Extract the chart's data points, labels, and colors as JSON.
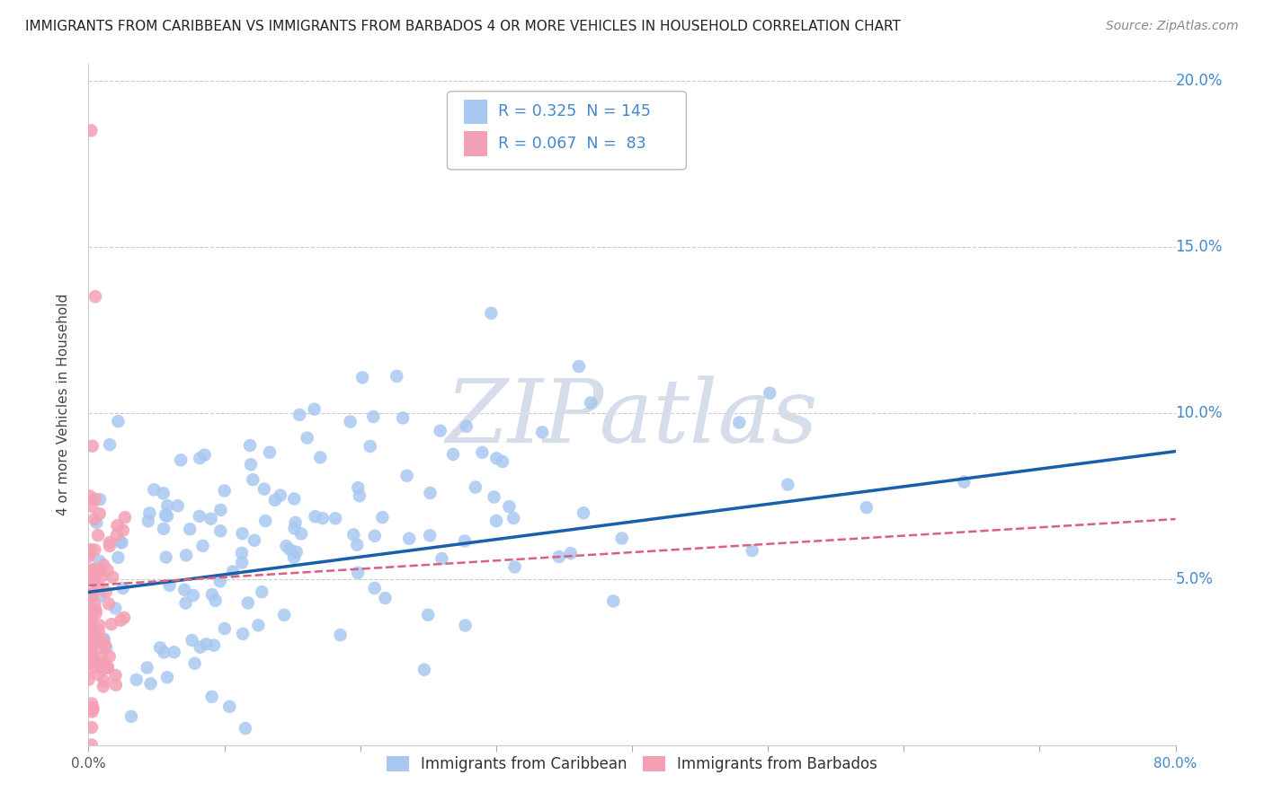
{
  "title": "IMMIGRANTS FROM CARIBBEAN VS IMMIGRANTS FROM BARBADOS 4 OR MORE VEHICLES IN HOUSEHOLD CORRELATION CHART",
  "source": "Source: ZipAtlas.com",
  "ylabel": "4 or more Vehicles in Household",
  "xlim": [
    0.0,
    0.8
  ],
  "ylim": [
    0.0,
    0.205
  ],
  "xticks": [
    0.0,
    0.1,
    0.2,
    0.3,
    0.4,
    0.5,
    0.6,
    0.7,
    0.8
  ],
  "xticklabels_outer": [
    "0.0%",
    "80.0%"
  ],
  "yticks": [
    0.0,
    0.05,
    0.1,
    0.15,
    0.2
  ],
  "yticklabels_right": [
    "",
    "5.0%",
    "10.0%",
    "15.0%",
    "20.0%"
  ],
  "caribbean_R": 0.325,
  "caribbean_N": 145,
  "barbados_R": 0.067,
  "barbados_N": 83,
  "caribbean_color": "#a8c8f0",
  "barbados_color": "#f4a0b4",
  "caribbean_line_color": "#1a5faa",
  "barbados_line_color": "#d96080",
  "tick_color": "#aaaaaa",
  "grid_color": "#cccccc",
  "watermark": "ZIPatlas",
  "watermark_color": "#d5dcea",
  "right_label_color": "#4488cc",
  "bottom_label_color": "#555555"
}
